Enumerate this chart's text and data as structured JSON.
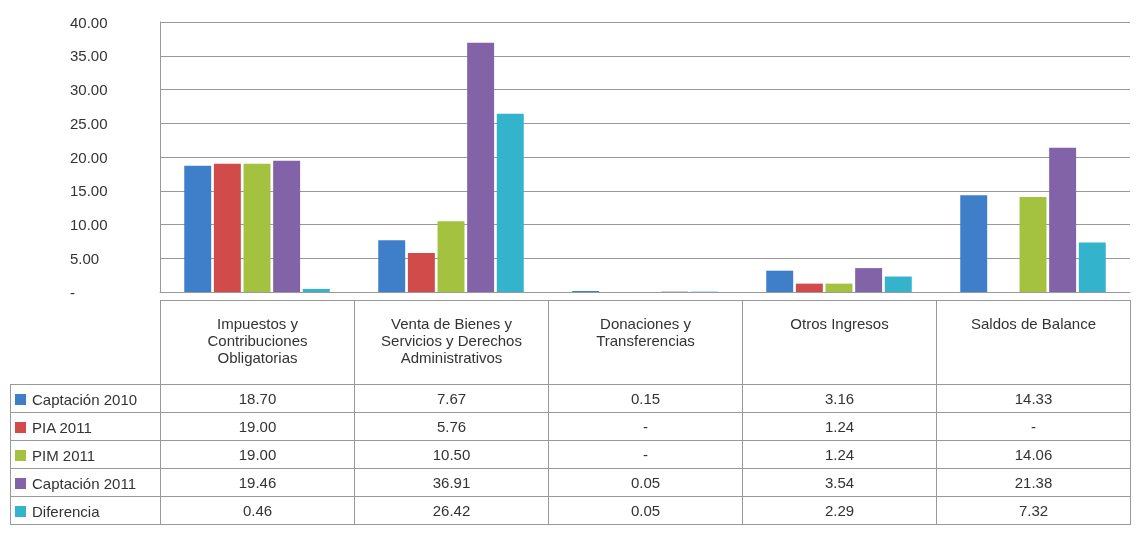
{
  "chart_data": {
    "type": "bar",
    "categories": [
      "Impuestos y Contribuciones Obligatorias",
      "Venta de Bienes y Servicios y Derechos Administrativos",
      "Donaciones y Transferencias",
      "Otros Ingresos",
      "Saldos de Balance"
    ],
    "series": [
      {
        "name": "Captación 2010",
        "color": "#3f7fc9",
        "values": [
          18.7,
          7.67,
          0.15,
          3.16,
          14.33
        ],
        "value_labels": [
          "18.70",
          "7.67",
          "0.15",
          "3.16",
          "14.33"
        ]
      },
      {
        "name": "PIA 2011",
        "color": "#d14b4b",
        "values": [
          19.0,
          5.76,
          0,
          1.24,
          0
        ],
        "value_labels": [
          "19.00",
          "5.76",
          "-",
          "1.24",
          "-"
        ]
      },
      {
        "name": "PIM 2011",
        "color": "#a4c23f",
        "values": [
          19.0,
          10.5,
          0,
          1.24,
          14.06
        ],
        "value_labels": [
          "19.00",
          "10.50",
          "-",
          "1.24",
          "14.06"
        ]
      },
      {
        "name": "Captación 2011",
        "color": "#8263a8",
        "values": [
          19.46,
          36.91,
          0.05,
          3.54,
          21.38
        ],
        "value_labels": [
          "19.46",
          "36.91",
          "0.05",
          "3.54",
          "21.38"
        ]
      },
      {
        "name": "Diferencia",
        "color": "#33b3cc",
        "values": [
          0.46,
          26.42,
          0.05,
          2.29,
          7.32
        ],
        "value_labels": [
          "0.46",
          "26.42",
          "0.05",
          "2.29",
          "7.32"
        ]
      }
    ],
    "ylim": [
      0,
      40
    ],
    "yticks": [
      {
        "value": 0,
        "label": "-"
      },
      {
        "value": 5,
        "label": "5.00"
      },
      {
        "value": 10,
        "label": "10.00"
      },
      {
        "value": 15,
        "label": "15.00"
      },
      {
        "value": 20,
        "label": "20.00"
      },
      {
        "value": 25,
        "label": "25.00"
      },
      {
        "value": 30,
        "label": "30.00"
      },
      {
        "value": 35,
        "label": "35.00"
      },
      {
        "value": 40,
        "label": "40.00"
      }
    ],
    "grid": "y",
    "legend": "bottom"
  }
}
